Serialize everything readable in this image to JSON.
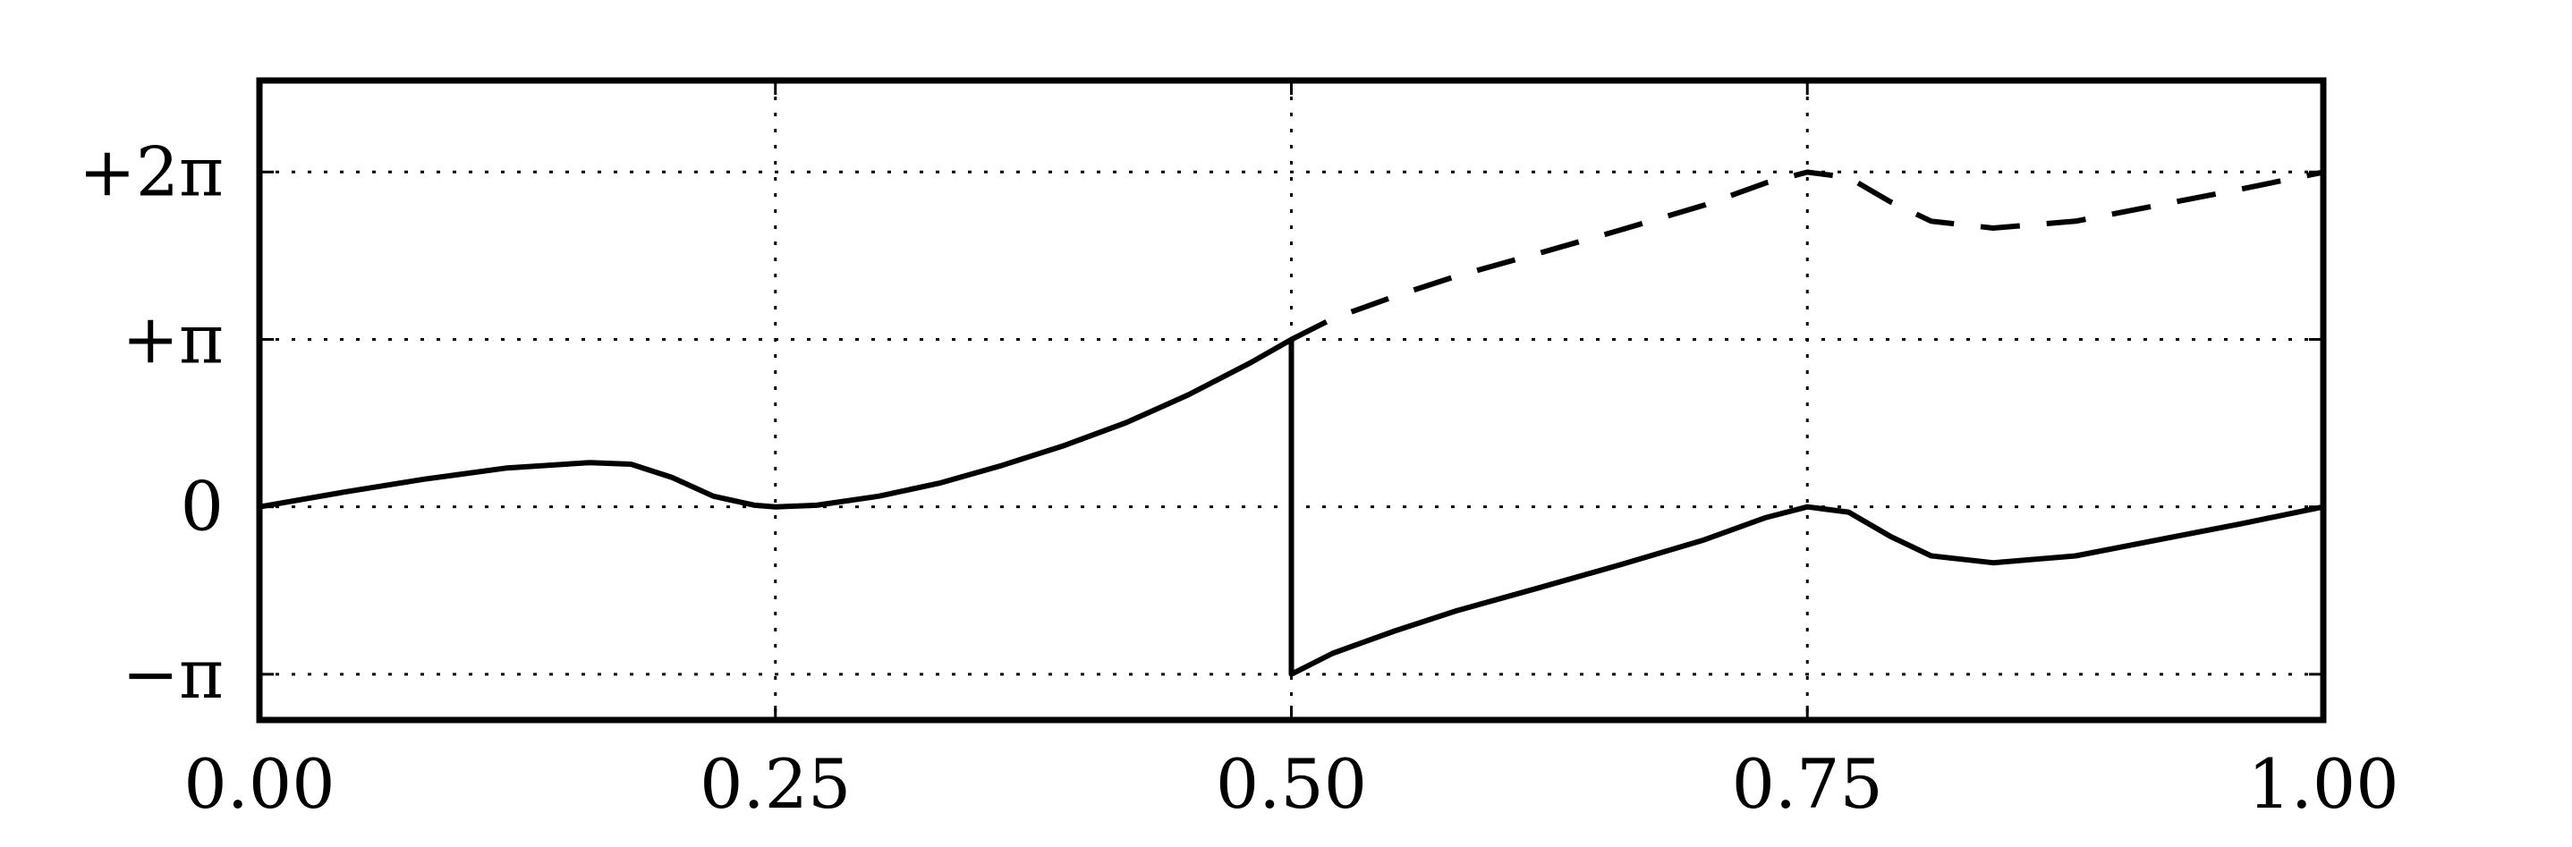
{
  "chart_data": {
    "type": "line",
    "title": "",
    "xlabel": "",
    "ylabel": "",
    "xlim": [
      0,
      1
    ],
    "ylim": [
      -4.0,
      8.0
    ],
    "grid": true,
    "grid_style": "dotted",
    "x_ticks": [
      {
        "value": 0.0,
        "label": "0.00"
      },
      {
        "value": 0.25,
        "label": "0.25"
      },
      {
        "value": 0.5,
        "label": "0.50"
      },
      {
        "value": 0.75,
        "label": "0.75"
      },
      {
        "value": 1.0,
        "label": "1.00"
      }
    ],
    "y_ticks": [
      {
        "value": 6.2832,
        "label": "+2π"
      },
      {
        "value": 3.1416,
        "label": "+π"
      },
      {
        "value": 0.0,
        "label": "0"
      },
      {
        "value": -3.1416,
        "label": "−π"
      }
    ],
    "series": [
      {
        "style": "solid",
        "color": "#000000",
        "x": [
          0.0,
          0.04,
          0.08,
          0.12,
          0.16,
          0.18,
          0.2,
          0.22,
          0.24,
          0.25,
          0.27,
          0.3,
          0.33,
          0.36,
          0.39,
          0.42,
          0.45,
          0.48,
          0.5,
          0.5,
          0.52,
          0.55,
          0.58,
          0.62,
          0.66,
          0.7,
          0.73,
          0.75,
          0.77,
          0.79,
          0.81,
          0.84,
          0.88,
          0.92,
          0.96,
          1.0
        ],
        "y": [
          0.0,
          0.27,
          0.52,
          0.73,
          0.83,
          0.8,
          0.55,
          0.2,
          0.03,
          0.0,
          0.03,
          0.2,
          0.45,
          0.78,
          1.15,
          1.58,
          2.1,
          2.7,
          3.14,
          -3.14,
          -2.75,
          -2.33,
          -1.95,
          -1.52,
          -1.08,
          -0.62,
          -0.2,
          0.0,
          -0.1,
          -0.55,
          -0.92,
          -1.05,
          -0.92,
          -0.62,
          -0.32,
          0.0
        ]
      },
      {
        "style": "dashed",
        "color": "#000000",
        "x": [
          0.5,
          0.52,
          0.55,
          0.58,
          0.62,
          0.66,
          0.7,
          0.73,
          0.75,
          0.77,
          0.79,
          0.81,
          0.84,
          0.88,
          0.92,
          0.96,
          1.0
        ],
        "y": [
          3.14,
          3.53,
          3.95,
          4.33,
          4.76,
          5.2,
          5.66,
          6.08,
          6.28,
          6.18,
          5.73,
          5.36,
          5.23,
          5.36,
          5.66,
          5.96,
          6.28
        ]
      }
    ]
  }
}
